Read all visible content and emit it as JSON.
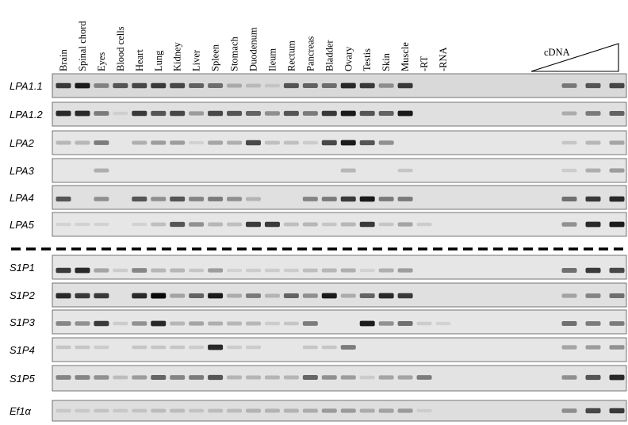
{
  "figure": {
    "lanes": [
      "Brain",
      "Spinal chord",
      "Eyes",
      "Blood cells",
      "Heart",
      "Lung",
      "Kidney",
      "Liver",
      "Spleen",
      "Stomach",
      "Duodenum",
      "Ileum",
      "Rectum",
      "Pancreas",
      "Bladder",
      "Ovary",
      "Testis",
      "Skin",
      "Muscle",
      "-RT",
      "-RNA"
    ],
    "standard_label": "cDNA",
    "rows": [
      {
        "label": "LPA1.1",
        "bg": "#d9d9d9",
        "bands": [
          0.85,
          0.95,
          0.55,
          0.75,
          0.8,
          0.85,
          0.8,
          0.7,
          0.65,
          0.35,
          0.25,
          0.15,
          0.75,
          0.7,
          0.65,
          0.9,
          0.85,
          0.5,
          0.85,
          0,
          0
        ],
        "std": [
          0.6,
          0.75,
          0.8
        ]
      },
      {
        "label": "LPA1.2",
        "bg": "#e0e0e0",
        "bands": [
          0.9,
          0.9,
          0.6,
          0.1,
          0.85,
          0.75,
          0.8,
          0.45,
          0.8,
          0.75,
          0.7,
          0.5,
          0.75,
          0.6,
          0.85,
          0.95,
          0.75,
          0.7,
          0.95,
          0,
          0
        ],
        "std": [
          0.35,
          0.6,
          0.7
        ]
      },
      {
        "label": "LPA2",
        "bg": "#e6e6e6",
        "bands": [
          0.3,
          0.3,
          0.6,
          0,
          0.35,
          0.45,
          0.45,
          0.1,
          0.4,
          0.35,
          0.8,
          0.25,
          0.25,
          0.15,
          0.8,
          0.95,
          0.75,
          0.5,
          0,
          0,
          0
        ],
        "std": [
          0.2,
          0.3,
          0.4
        ]
      },
      {
        "label": "LPA3",
        "bg": "#e6e6e6",
        "bands": [
          0,
          0,
          0.35,
          0,
          0,
          0,
          0,
          0,
          0,
          0,
          0,
          0,
          0,
          0,
          0,
          0.3,
          0,
          0,
          0.2,
          0,
          0
        ],
        "std": [
          0.15,
          0.35,
          0.45
        ]
      },
      {
        "label": "LPA4",
        "bg": "#e0e0e0",
        "bands": [
          0.75,
          0,
          0.5,
          0,
          0.75,
          0.5,
          0.75,
          0.55,
          0.6,
          0.5,
          0.3,
          0,
          0,
          0.55,
          0.6,
          0.85,
          0.95,
          0.6,
          0.6,
          0,
          0
        ],
        "std": [
          0.65,
          0.85,
          0.9
        ]
      },
      {
        "label": "LPA5",
        "bg": "#e6e6e6",
        "bands": [
          0.1,
          0.1,
          0.1,
          0,
          0.1,
          0.25,
          0.75,
          0.5,
          0.3,
          0.25,
          0.85,
          0.85,
          0.25,
          0.3,
          0.2,
          0.3,
          0.85,
          0.2,
          0.4,
          0.15,
          0
        ],
        "std": [
          0.5,
          0.9,
          0.95
        ]
      },
      {
        "label": "S1P1",
        "bg": "#e6e6e6",
        "bands": [
          0.85,
          0.9,
          0.4,
          0.15,
          0.55,
          0.3,
          0.3,
          0.2,
          0.45,
          0.1,
          0.15,
          0.15,
          0.15,
          0.25,
          0.3,
          0.35,
          0.1,
          0.35,
          0.45,
          0,
          0
        ],
        "std": [
          0.65,
          0.85,
          0.8
        ]
      },
      {
        "label": "S1P2",
        "bg": "#e0e0e0",
        "bands": [
          0.9,
          0.85,
          0.85,
          0,
          0.9,
          1.0,
          0.4,
          0.7,
          0.95,
          0.35,
          0.6,
          0.3,
          0.7,
          0.5,
          0.95,
          0.35,
          0.7,
          0.9,
          0.85,
          0,
          0
        ],
        "std": [
          0.4,
          0.55,
          0.65
        ]
      },
      {
        "label": "S1P3",
        "bg": "#e6e6e6",
        "bands": [
          0.55,
          0.5,
          0.85,
          0.15,
          0.5,
          0.9,
          0.3,
          0.4,
          0.35,
          0.3,
          0.3,
          0.15,
          0.2,
          0.6,
          0,
          0,
          0.95,
          0.5,
          0.65,
          0.15,
          0.1
        ],
        "std": [
          0.65,
          0.6,
          0.6
        ]
      },
      {
        "label": "S1P4",
        "bg": "#e6e6e6",
        "bands": [
          0.2,
          0.2,
          0.15,
          0,
          0.2,
          0.2,
          0.2,
          0.15,
          0.9,
          0.15,
          0.15,
          0,
          0,
          0.2,
          0.2,
          0.6,
          0,
          0,
          0,
          0,
          0
        ],
        "std": [
          0.4,
          0.45,
          0.5
        ]
      },
      {
        "label": "S1P5",
        "bg": "#e3e3e3",
        "bands": [
          0.55,
          0.55,
          0.5,
          0.25,
          0.45,
          0.7,
          0.55,
          0.6,
          0.75,
          0.3,
          0.3,
          0.3,
          0.3,
          0.7,
          0.5,
          0.45,
          0.15,
          0.4,
          0.4,
          0.6,
          0
        ],
        "std": [
          0.5,
          0.75,
          0.9
        ]
      },
      {
        "label": "Ef1α",
        "bg": "#dedede",
        "bands": [
          0.15,
          0.15,
          0.2,
          0.15,
          0.2,
          0.25,
          0.25,
          0.2,
          0.25,
          0.25,
          0.3,
          0.3,
          0.3,
          0.35,
          0.45,
          0.45,
          0.35,
          0.4,
          0.45,
          0.1,
          0
        ],
        "std": [
          0.5,
          0.8,
          0.85
        ]
      }
    ]
  }
}
